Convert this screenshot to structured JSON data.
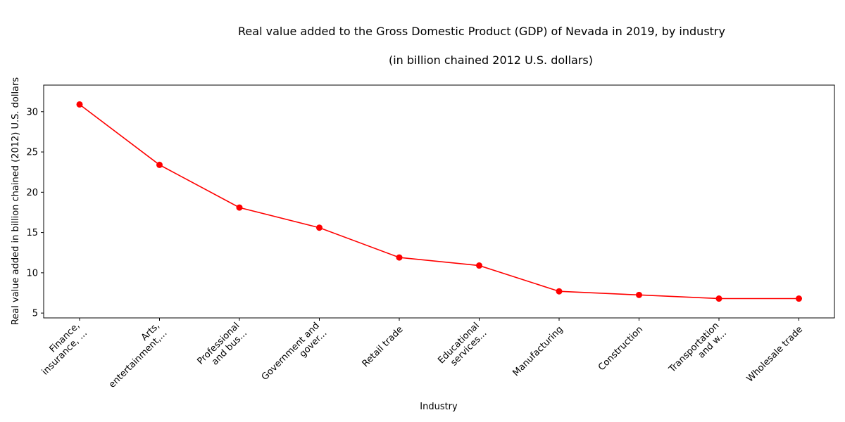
{
  "chart_data": {
    "type": "line",
    "title": "Real value added to the Gross Domestic Product (GDP) of Nevada in 2019, by industry",
    "subtitle": "(in billion chained 2012 U.S. dollars)",
    "xlabel": "Industry",
    "ylabel": "Real value added in billion chained (2012) U.S. dollars",
    "categories": [
      "Finance,\ninsurance, ...",
      "Arts,\nentertainment,...",
      "Professional\nand bus...",
      "Government and\ngover...",
      "Retail trade",
      "Educational\nservices...",
      "Manufacturing",
      "Construction",
      "Transportation\nand w...",
      "Wholesale trade"
    ],
    "values": [
      30.9,
      23.4,
      18.1,
      15.6,
      11.9,
      10.9,
      7.7,
      7.25,
      6.8,
      6.8
    ],
    "ylim": [
      4.4,
      33.3
    ],
    "yticks": [
      5,
      10,
      15,
      20,
      25,
      30
    ],
    "grid": false,
    "legend": "none",
    "color": "#ff0000"
  }
}
